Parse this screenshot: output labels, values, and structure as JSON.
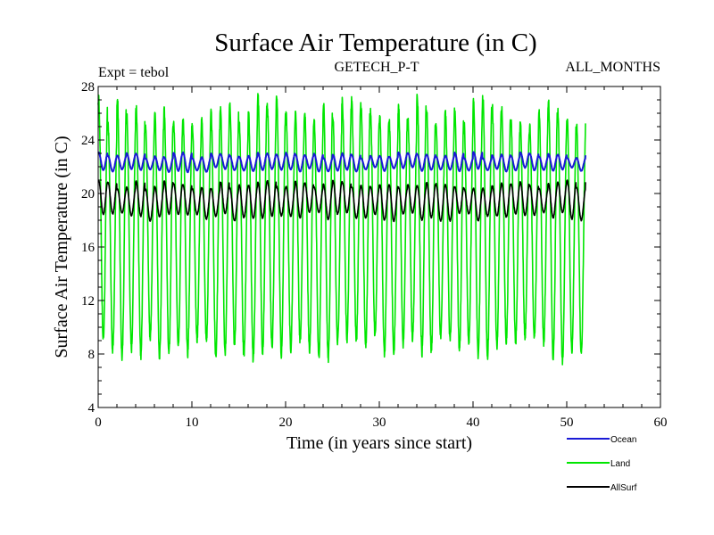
{
  "chart_data": {
    "type": "line",
    "title": "Surface Air Temperature (in C)",
    "subtitle_left": "Expt = tebol",
    "subtitle_center": "GETECH_P-T",
    "subtitle_right": "ALL_MONTHS",
    "xlabel": "Time (in years since start)",
    "ylabel": "Surface Air Temperature (in C)",
    "xlim": [
      0,
      60
    ],
    "ylim": [
      4,
      28
    ],
    "xticks": [
      0,
      10,
      20,
      30,
      40,
      50,
      60
    ],
    "yticks": [
      4,
      8,
      12,
      16,
      20,
      24,
      28
    ],
    "x_start": 0,
    "x_end": 52,
    "cycle_years": 1,
    "series": [
      {
        "name": "Ocean",
        "color": "#1a1ad6",
        "seasonal_min": 21.8,
        "seasonal_max": 22.9,
        "peak_range": [
          22.6,
          23.1
        ],
        "trough_range": [
          21.6,
          22.0
        ]
      },
      {
        "name": "Land",
        "color": "#00e600",
        "seasonal_min": 8.5,
        "seasonal_max": 26.0,
        "peak_range": [
          25.0,
          27.3
        ],
        "trough_range": [
          7.5,
          9.3
        ]
      },
      {
        "name": "AllSurf",
        "color": "#000000",
        "seasonal_min": 18.3,
        "seasonal_max": 20.8,
        "peak_range": [
          20.3,
          21.0
        ],
        "trough_range": [
          17.9,
          18.6
        ]
      }
    ],
    "legend": [
      "Ocean",
      "Land",
      "AllSurf"
    ],
    "legend_position": "bottom-right"
  }
}
